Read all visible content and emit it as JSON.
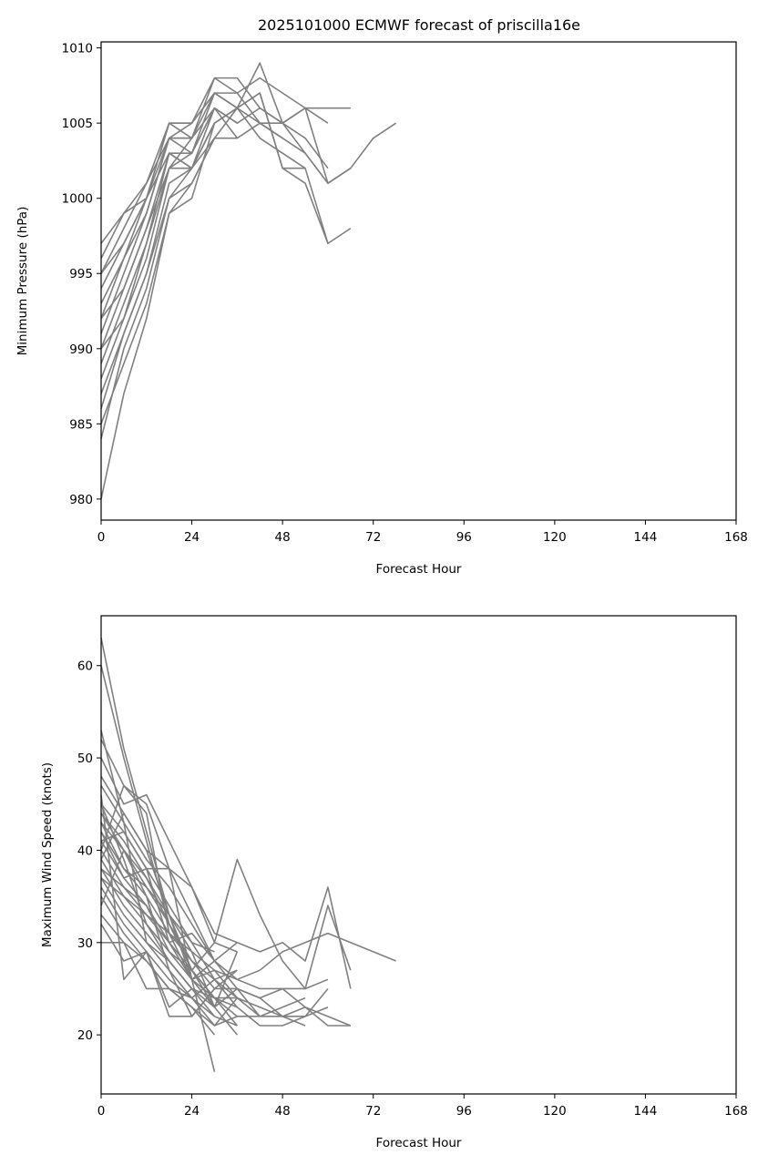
{
  "figure": {
    "title": "2025101000 ECMWF forecast of priscilla16e"
  },
  "chart_data": [
    {
      "type": "line",
      "title": "2025101000 ECMWF forecast of priscilla16e",
      "xlabel": "Forecast Hour",
      "ylabel": "Minimum Pressure (hPa)",
      "xlim": [
        0,
        168
      ],
      "ylim": [
        978.6,
        1010.4
      ],
      "xticks": [
        0,
        24,
        48,
        72,
        96,
        120,
        144,
        168
      ],
      "yticks": [
        980,
        985,
        990,
        995,
        1000,
        1005,
        1010
      ],
      "grid": false,
      "line_color": "#808080",
      "series": [
        {
          "x": [
            0,
            6,
            12,
            18,
            24,
            30,
            36,
            42,
            48,
            54,
            60
          ],
          "y": [
            980,
            987,
            992,
            999,
            1000,
            1005,
            1006,
            1007,
            1002,
            1001,
            997
          ]
        },
        {
          "x": [
            0,
            6,
            12,
            18,
            24,
            30,
            36,
            42,
            48,
            54,
            60,
            66
          ],
          "y": [
            984,
            990,
            994,
            1000,
            1001,
            1004,
            1006,
            1009,
            1005,
            1006,
            1001,
            1002
          ]
        },
        {
          "x": [
            0,
            6,
            12,
            18,
            24,
            30,
            36,
            42,
            48,
            54,
            60,
            66,
            72,
            78
          ],
          "y": [
            986,
            991,
            995,
            1001,
            1002,
            1005,
            1006,
            1005,
            1004,
            1003,
            1001,
            1002,
            1004,
            1005
          ]
        },
        {
          "x": [
            0,
            6,
            12,
            18,
            24,
            30,
            36,
            42,
            48,
            54,
            60,
            66
          ],
          "y": [
            988,
            992,
            996,
            1002,
            1003,
            1007,
            1006,
            1007,
            1002,
            1002,
            997,
            998
          ]
        },
        {
          "x": [
            0,
            6,
            12,
            18,
            24,
            30,
            36,
            42,
            48,
            54,
            60,
            66
          ],
          "y": [
            989,
            993,
            997,
            1002,
            1004,
            1008,
            1008,
            1006,
            1005,
            1006,
            1006,
            1006
          ]
        },
        {
          "x": [
            0,
            6,
            12,
            18,
            24,
            30,
            36,
            42,
            48,
            54,
            60
          ],
          "y": [
            990,
            994,
            998,
            1003,
            1002,
            1006,
            1005,
            1006,
            1005,
            1004,
            1002
          ]
        },
        {
          "x": [
            0,
            6,
            12,
            18,
            24,
            30,
            36,
            42,
            48,
            54,
            60
          ],
          "y": [
            991,
            995,
            999,
            1004,
            1004,
            1007,
            1007,
            1005,
            1005,
            1003,
            1001
          ]
        },
        {
          "x": [
            0,
            6,
            12,
            18,
            24,
            30,
            36,
            42,
            48,
            54,
            60
          ],
          "y": [
            992,
            996,
            999,
            1004,
            1005,
            1008,
            1007,
            1008,
            1007,
            1006,
            1005
          ]
        },
        {
          "x": [
            0,
            6,
            12,
            18,
            24,
            30,
            36,
            42,
            48,
            54
          ],
          "y": [
            993,
            996,
            1000,
            1005,
            1005,
            1007,
            1006,
            1004,
            1003,
            1002
          ]
        },
        {
          "x": [
            0,
            6,
            12,
            18,
            24,
            30,
            36,
            42,
            48
          ],
          "y": [
            994,
            997,
            1000,
            1005,
            1004,
            1006,
            1004,
            1005,
            1004
          ]
        },
        {
          "x": [
            0,
            6,
            12,
            18,
            24,
            30,
            36
          ],
          "y": [
            995,
            998,
            1001,
            1005,
            1005,
            1007,
            1006
          ]
        },
        {
          "x": [
            0,
            6,
            12,
            18,
            24,
            30
          ],
          "y": [
            996,
            999,
            1001,
            1004,
            1003,
            1006
          ]
        },
        {
          "x": [
            0,
            6,
            12,
            18,
            24,
            30
          ],
          "y": [
            997,
            999,
            1000,
            1003,
            1002,
            1005
          ]
        },
        {
          "x": [
            0,
            6,
            12,
            18,
            24,
            30,
            36
          ],
          "y": [
            985,
            989,
            993,
            999,
            1001,
            1004,
            1004
          ]
        },
        {
          "x": [
            0,
            6,
            12,
            18,
            24,
            30
          ],
          "y": [
            987,
            991,
            995,
            1000,
            1002,
            1005
          ]
        },
        {
          "x": [
            0,
            6,
            12,
            18,
            24,
            30,
            36
          ],
          "y": [
            990,
            992,
            997,
            1003,
            1003,
            1006,
            1005
          ]
        },
        {
          "x": [
            0,
            6,
            12,
            18,
            24
          ],
          "y": [
            995,
            997,
            1000,
            1004,
            1004
          ]
        },
        {
          "x": [
            0,
            6,
            12,
            18,
            24,
            30
          ],
          "y": [
            992,
            994,
            998,
            1002,
            1002,
            1004
          ]
        }
      ]
    },
    {
      "type": "line",
      "title": "",
      "xlabel": "Forecast Hour",
      "ylabel": "Maximum Wind Speed (knots)",
      "xlim": [
        0,
        168
      ],
      "ylim": [
        13.6,
        65.4
      ],
      "xticks": [
        0,
        24,
        48,
        72,
        96,
        120,
        144,
        168
      ],
      "yticks": [
        20,
        30,
        40,
        50,
        60
      ],
      "grid": false,
      "line_color": "#808080",
      "series": [
        {
          "x": [
            0,
            6,
            12,
            18,
            24,
            30
          ],
          "y": [
            63,
            51,
            42,
            33,
            26,
            16
          ]
        },
        {
          "x": [
            0,
            6,
            12,
            18,
            24,
            30,
            36
          ],
          "y": [
            60,
            50,
            41,
            32,
            27,
            24,
            21
          ]
        },
        {
          "x": [
            0,
            6,
            12,
            18,
            24,
            30,
            36,
            42,
            48,
            54,
            60,
            66,
            72,
            78
          ],
          "y": [
            52,
            47,
            45,
            38,
            33,
            28,
            26,
            27,
            29,
            30,
            31,
            30,
            29,
            28
          ]
        },
        {
          "x": [
            0,
            6,
            12,
            18,
            24,
            30,
            36,
            42,
            48,
            54,
            60,
            66
          ],
          "y": [
            50,
            45,
            46,
            41,
            36,
            31,
            30,
            29,
            30,
            28,
            36,
            25
          ]
        },
        {
          "x": [
            0,
            6,
            12,
            18,
            24,
            30,
            36,
            42,
            48,
            54,
            60
          ],
          "y": [
            48,
            44,
            40,
            38,
            36,
            30,
            39,
            33,
            28,
            25,
            26
          ]
        },
        {
          "x": [
            0,
            6,
            12,
            18,
            24,
            30,
            36,
            42,
            48,
            54,
            60,
            66
          ],
          "y": [
            47,
            43,
            39,
            36,
            32,
            28,
            25,
            24,
            25,
            25,
            34,
            27
          ]
        },
        {
          "x": [
            0,
            6,
            12,
            18,
            24,
            30,
            36,
            42,
            48,
            54,
            60,
            66
          ],
          "y": [
            45,
            42,
            38,
            34,
            30,
            26,
            24,
            22,
            22,
            23,
            22,
            21
          ]
        },
        {
          "x": [
            0,
            6,
            12,
            18,
            24,
            30,
            36,
            42,
            48,
            54,
            60,
            66
          ],
          "y": [
            44,
            40,
            37,
            33,
            29,
            27,
            26,
            25,
            25,
            23,
            21,
            21
          ]
        },
        {
          "x": [
            0,
            6,
            12,
            18,
            24,
            30,
            36,
            42,
            48,
            54,
            60
          ],
          "y": [
            43,
            40,
            36,
            32,
            28,
            26,
            23,
            21,
            21,
            22,
            23
          ]
        },
        {
          "x": [
            0,
            6,
            12,
            18,
            24,
            30,
            36,
            42,
            48,
            54,
            60
          ],
          "y": [
            42,
            38,
            35,
            31,
            28,
            25,
            25,
            24,
            22,
            22,
            25
          ]
        },
        {
          "x": [
            0,
            6,
            12,
            18,
            24,
            30,
            36,
            42,
            48,
            54
          ],
          "y": [
            41,
            37,
            34,
            30,
            27,
            24,
            24,
            23,
            22,
            21
          ]
        },
        {
          "x": [
            0,
            6,
            12,
            18,
            24,
            30,
            36,
            42,
            48,
            54
          ],
          "y": [
            40,
            36,
            33,
            30,
            26,
            24,
            22,
            22,
            23,
            24
          ]
        },
        {
          "x": [
            0,
            6,
            12,
            18,
            24,
            30,
            36
          ],
          "y": [
            39,
            35,
            32,
            28,
            25,
            23,
            20
          ]
        },
        {
          "x": [
            0,
            6,
            12,
            18,
            24,
            30,
            36
          ],
          "y": [
            38,
            34,
            31,
            28,
            25,
            22,
            21
          ]
        },
        {
          "x": [
            0,
            6,
            12,
            18,
            24,
            30
          ],
          "y": [
            37,
            33,
            30,
            27,
            24,
            22
          ]
        },
        {
          "x": [
            0,
            6,
            12,
            18,
            24,
            30,
            36
          ],
          "y": [
            36,
            32,
            29,
            26,
            24,
            21,
            22
          ]
        },
        {
          "x": [
            0,
            6,
            12,
            18,
            24,
            30,
            36
          ],
          "y": [
            35,
            31,
            28,
            25,
            23,
            21,
            24
          ]
        },
        {
          "x": [
            0,
            6,
            12,
            18,
            24,
            30
          ],
          "y": [
            33,
            30,
            28,
            25,
            23,
            20
          ]
        },
        {
          "x": [
            0,
            6,
            12,
            18,
            24,
            30,
            36
          ],
          "y": [
            30,
            30,
            25,
            25,
            24,
            26,
            27
          ]
        },
        {
          "x": [
            0,
            6,
            12,
            18,
            24
          ],
          "y": [
            32,
            28,
            29,
            23,
            25
          ]
        },
        {
          "x": [
            0,
            6,
            12,
            18,
            24,
            30,
            36
          ],
          "y": [
            46,
            26,
            29,
            22,
            22,
            25,
            27
          ]
        },
        {
          "x": [
            0,
            6,
            12,
            18,
            24,
            30,
            36
          ],
          "y": [
            40,
            47,
            44,
            31,
            29,
            23,
            29
          ]
        },
        {
          "x": [
            0,
            6,
            12,
            18,
            24,
            30
          ],
          "y": [
            43,
            38,
            36,
            33,
            30,
            29
          ]
        },
        {
          "x": [
            0,
            6,
            12,
            18,
            24,
            30,
            36
          ],
          "y": [
            38,
            36,
            34,
            29,
            27,
            30,
            29
          ]
        },
        {
          "x": [
            0,
            6,
            12,
            18,
            24,
            30
          ],
          "y": [
            41,
            42,
            38,
            30,
            31,
            28
          ]
        },
        {
          "x": [
            0,
            6,
            12,
            18,
            24,
            30,
            36,
            42
          ],
          "y": [
            44,
            41,
            37,
            32,
            27,
            23,
            25,
            22
          ]
        },
        {
          "x": [
            0,
            6,
            12,
            18,
            24,
            30,
            36
          ],
          "y": [
            39,
            44,
            40,
            33,
            27,
            24,
            23
          ]
        },
        {
          "x": [
            0,
            6,
            12,
            18,
            24,
            30
          ],
          "y": [
            37,
            35,
            33,
            31,
            26,
            23
          ]
        },
        {
          "x": [
            0,
            6,
            12,
            18,
            24,
            30,
            36
          ],
          "y": [
            42,
            37,
            38,
            38,
            26,
            28,
            30
          ]
        },
        {
          "x": [
            0,
            6,
            12,
            18,
            24,
            30
          ],
          "y": [
            34,
            40,
            35,
            27,
            22,
            25
          ]
        },
        {
          "x": [
            0,
            6,
            12,
            18,
            24,
            30,
            36
          ],
          "y": [
            45,
            39,
            32,
            29,
            26,
            27,
            24
          ]
        },
        {
          "x": [
            0,
            6,
            12,
            18,
            24,
            30
          ],
          "y": [
            53,
            43,
            30,
            28,
            25,
            24
          ]
        }
      ]
    }
  ]
}
